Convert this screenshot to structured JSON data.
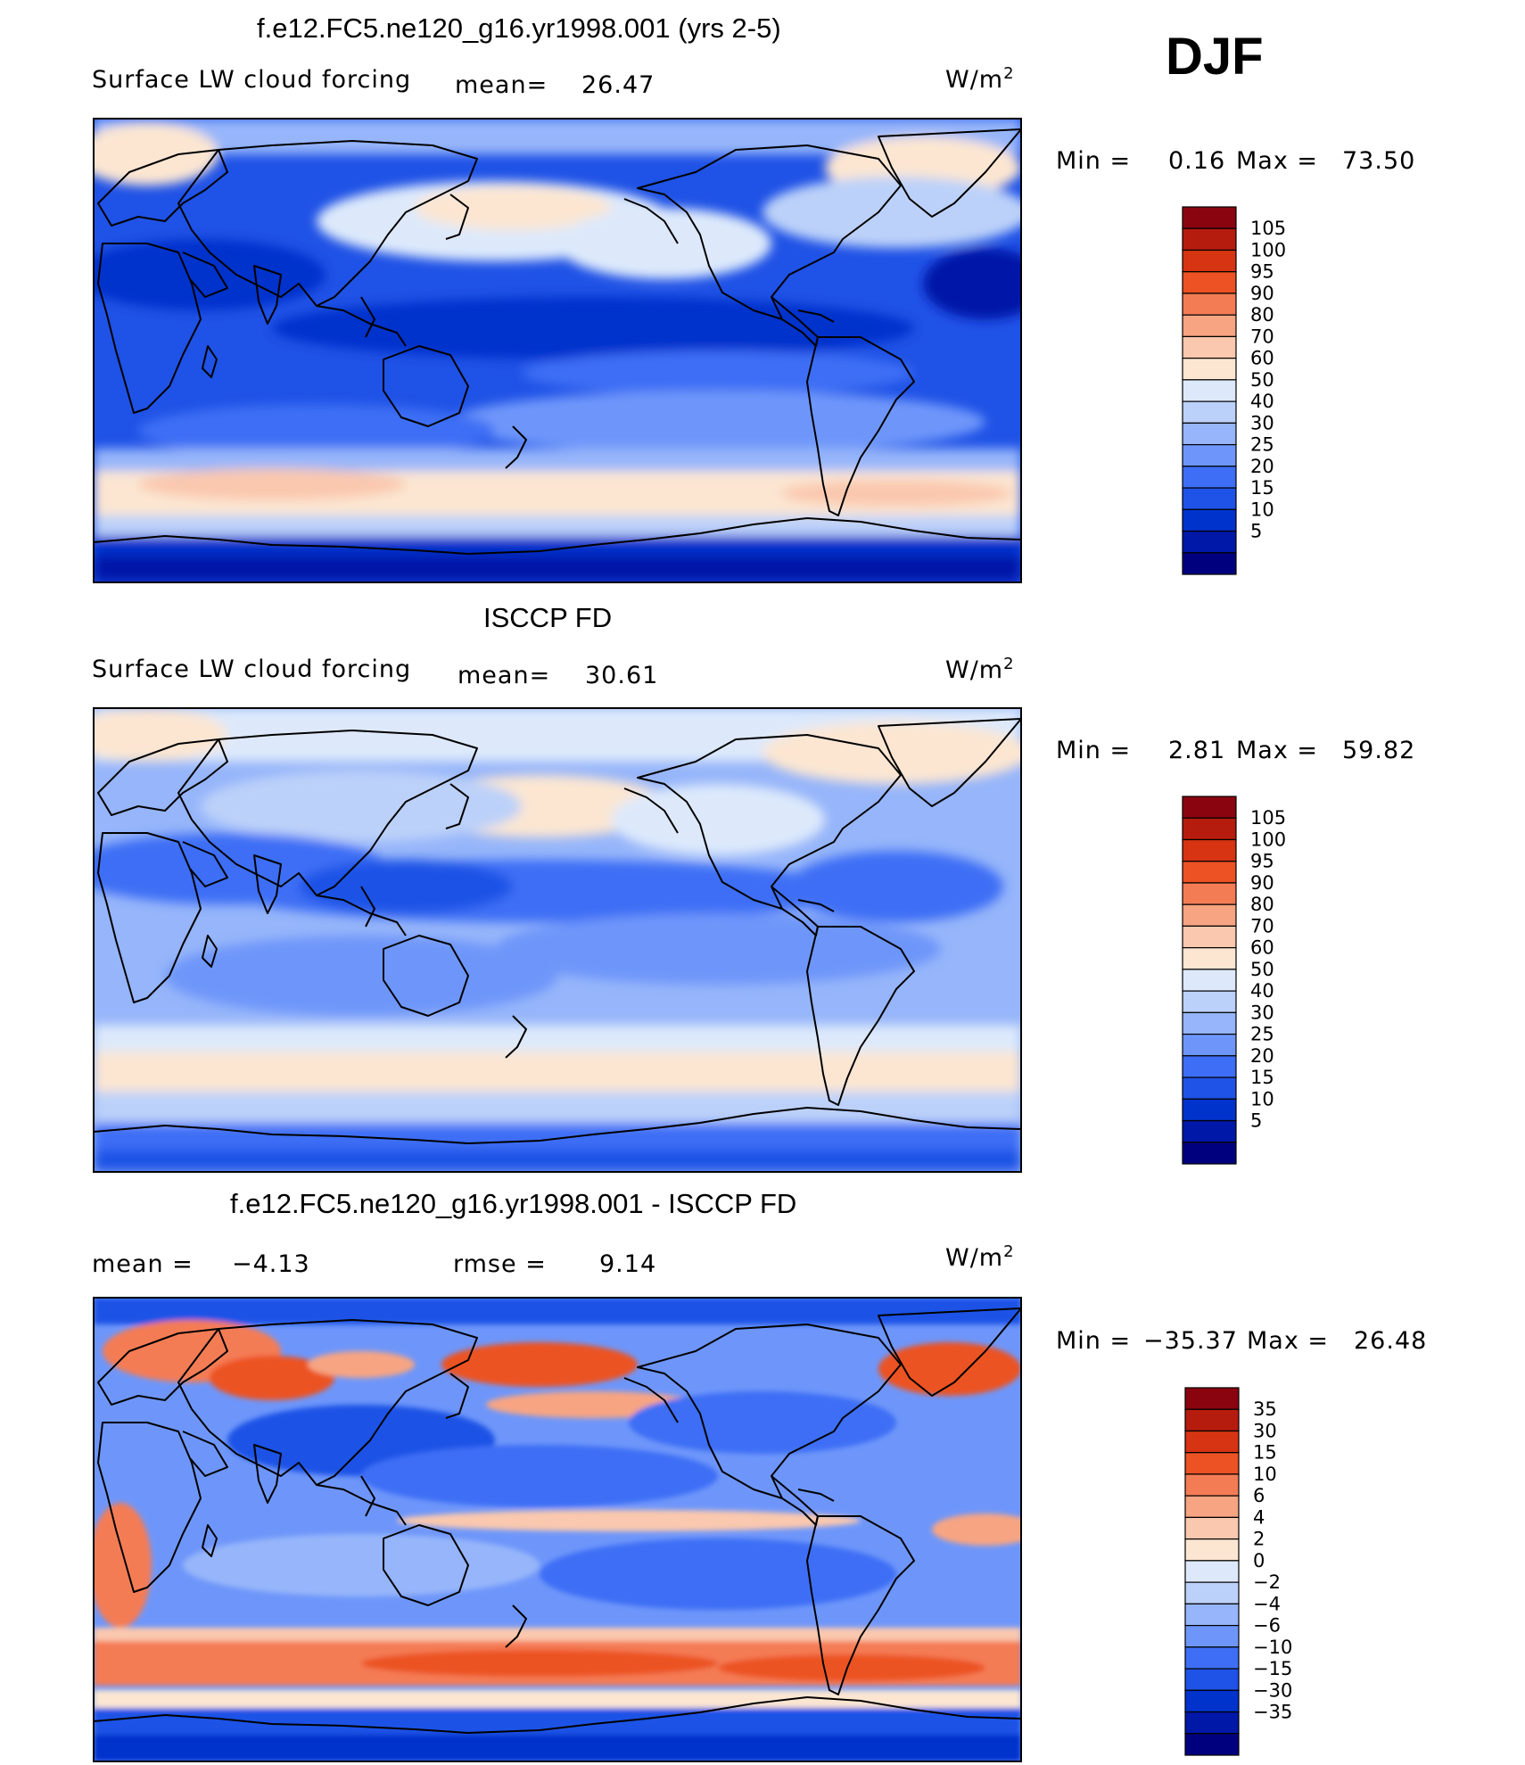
{
  "season": "DJF",
  "colors": {
    "seq": [
      "#00007f",
      "#0018a8",
      "#0033cc",
      "#1f52e6",
      "#3d6ef5",
      "#6e96fa",
      "#96b5fa",
      "#bcd1f9",
      "#dde9fb",
      "#fce6d2",
      "#fac8ae",
      "#f7a482",
      "#f47c55",
      "#ec5224",
      "#d63412",
      "#b61c0e",
      "#8a0410"
    ],
    "seqLevels": [
      "5",
      "10",
      "15",
      "20",
      "25",
      "30",
      "40",
      "50",
      "60",
      "70",
      "80",
      "90",
      "95",
      "100",
      "105"
    ],
    "diffLevels": [
      "−35",
      "−30",
      "−15",
      "−10",
      "−6",
      "−4",
      "−2",
      "0",
      "2",
      "4",
      "6",
      "10",
      "15",
      "30",
      "35"
    ]
  },
  "panels": [
    {
      "id": "model",
      "title": "f.e12.FC5.ne120_g16.yr1998.001 (yrs 2-5)",
      "variable": "Surface LW cloud forcing",
      "mean_label": "mean=",
      "mean_value": "26.47",
      "units": "W/m",
      "units_exp": "2",
      "min_label": "Min =",
      "min_value": "0.16",
      "max_label": "Max =",
      "max_value": "73.50",
      "levels": [
        "105",
        "100",
        "95",
        "90",
        "80",
        "70",
        "60",
        "50",
        "40",
        "30",
        "25",
        "20",
        "15",
        "10",
        "5"
      ]
    },
    {
      "id": "obs",
      "title": "ISCCP FD",
      "variable": "Surface LW cloud forcing",
      "mean_label": "mean=",
      "mean_value": "30.61",
      "units": "W/m",
      "units_exp": "2",
      "min_label": "Min =",
      "min_value": "2.81",
      "max_label": "Max =",
      "max_value": "59.82",
      "levels": [
        "105",
        "100",
        "95",
        "90",
        "80",
        "70",
        "60",
        "50",
        "40",
        "30",
        "25",
        "20",
        "15",
        "10",
        "5"
      ]
    },
    {
      "id": "diff",
      "title": "f.e12.FC5.ne120_g16.yr1998.001 - ISCCP FD",
      "mean_label": "mean =",
      "mean_value": "−4.13",
      "rmse_label": "rmse =",
      "rmse_value": "9.14",
      "units": "W/m",
      "units_exp": "2",
      "min_label": "Min =",
      "min_value": "−35.37",
      "max_label": "Max =",
      "max_value": "26.48",
      "levels": [
        "35",
        "30",
        "15",
        "10",
        "6",
        "4",
        "2",
        "0",
        "−2",
        "−4",
        "−6",
        "−10",
        "−15",
        "−30",
        "−35"
      ]
    }
  ]
}
